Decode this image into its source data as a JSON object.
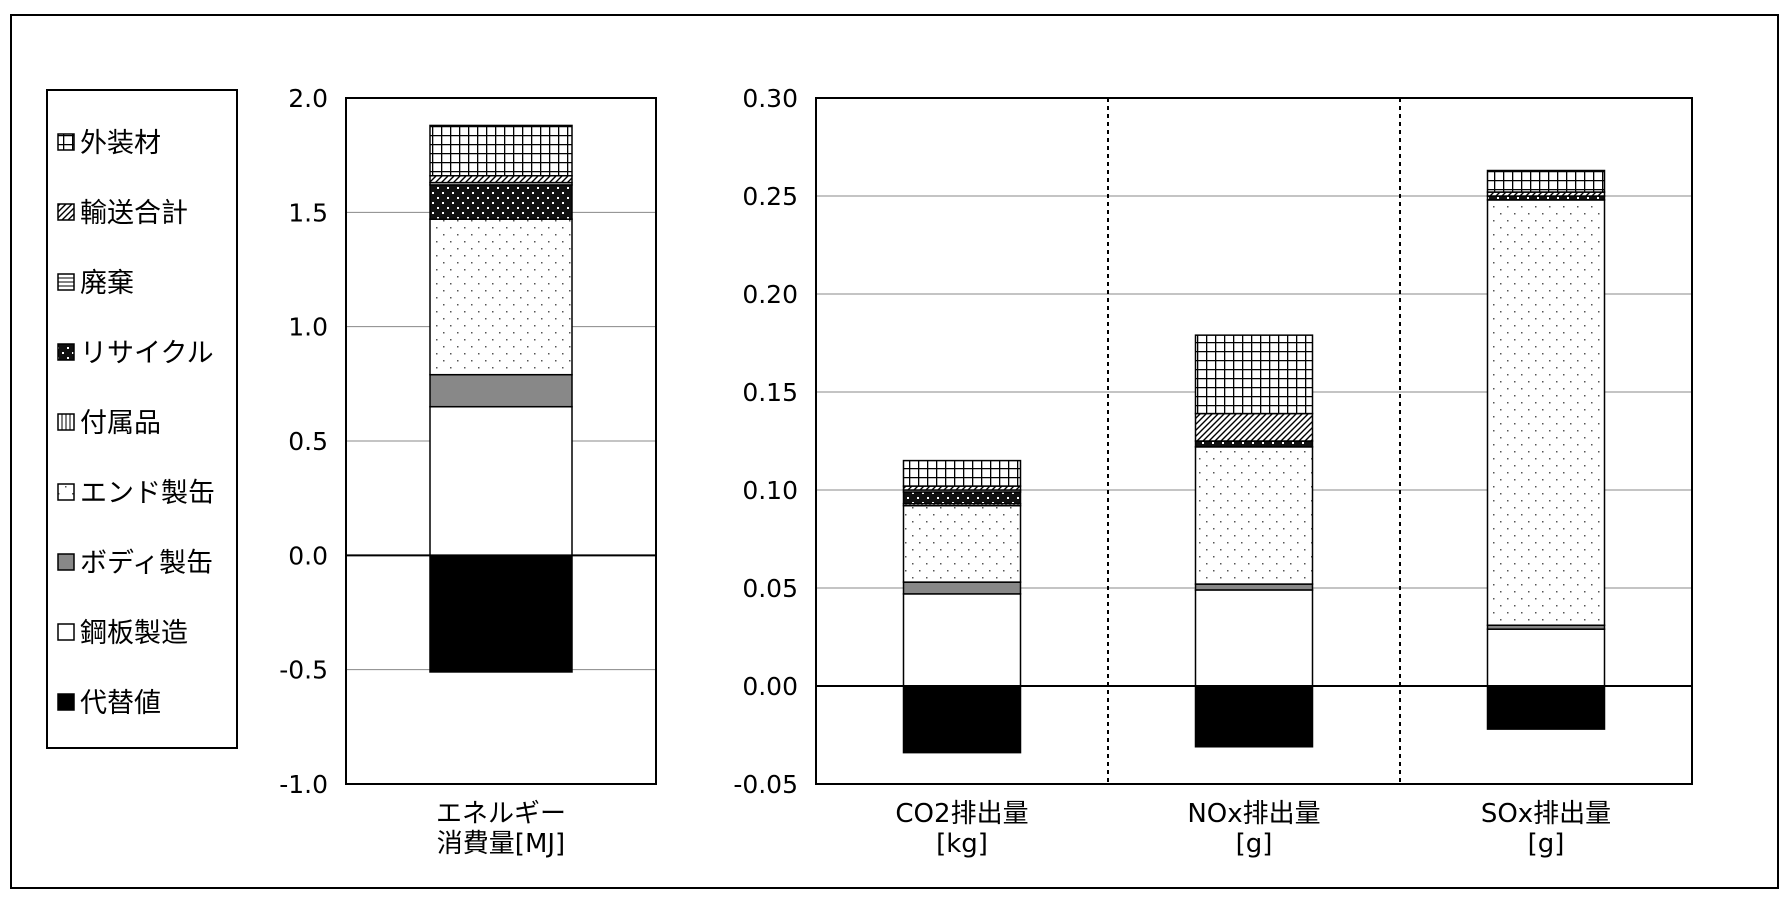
{
  "legend": {
    "items": [
      {
        "label": "外装材",
        "pattern": "grid"
      },
      {
        "label": "輸送合計",
        "pattern": "hatch"
      },
      {
        "label": "廃棄",
        "pattern": "hline"
      },
      {
        "label": "リサイクル",
        "pattern": "darkdots"
      },
      {
        "label": "付属品",
        "pattern": "vline"
      },
      {
        "label": "エンド製缶",
        "pattern": "lightdots"
      },
      {
        "label": "ボディ製缶",
        "pattern": "gray"
      },
      {
        "label": "鋼板製造",
        "pattern": "white"
      },
      {
        "label": "代替値",
        "pattern": "black"
      }
    ]
  },
  "chart_data": [
    {
      "type": "bar",
      "stacked": true,
      "categories": [
        [
          "エネルギー",
          "消費量[MJ]"
        ]
      ],
      "ylim": [
        -1.0,
        2.0
      ],
      "yticks": [
        "2.0",
        "1.5",
        "1.0",
        "0.5",
        "0.0",
        "-0.5",
        "-1.0"
      ],
      "ytick_values": [
        2.0,
        1.5,
        1.0,
        0.5,
        0.0,
        -0.5,
        -1.0
      ],
      "grid": true,
      "series": [
        {
          "name": "代替値",
          "pattern": "black",
          "values": [
            -0.51
          ]
        },
        {
          "name": "鋼板製造",
          "pattern": "white",
          "values": [
            0.65
          ]
        },
        {
          "name": "ボディ製缶",
          "pattern": "gray",
          "values": [
            0.14
          ]
        },
        {
          "name": "エンド製缶",
          "pattern": "lightdots",
          "values": [
            0.68
          ]
        },
        {
          "name": "付属品",
          "pattern": "vline",
          "values": [
            0.0
          ]
        },
        {
          "name": "リサイクル",
          "pattern": "darkdots",
          "values": [
            0.15
          ]
        },
        {
          "name": "廃棄",
          "pattern": "hline",
          "values": [
            0.01
          ]
        },
        {
          "name": "輸送合計",
          "pattern": "hatch",
          "values": [
            0.03
          ]
        },
        {
          "name": "外装材",
          "pattern": "grid",
          "values": [
            0.22
          ]
        }
      ]
    },
    {
      "type": "bar",
      "stacked": true,
      "categories": [
        [
          "CO2排出量",
          "[kg]"
        ],
        [
          "NOx排出量",
          "[g]"
        ],
        [
          "SOx排出量",
          "[g]"
        ]
      ],
      "ylim": [
        -0.05,
        0.3
      ],
      "yticks": [
        "0.30",
        "0.25",
        "0.20",
        "0.15",
        "0.10",
        "0.05",
        "0.00",
        "-0.05"
      ],
      "ytick_values": [
        0.3,
        0.25,
        0.2,
        0.15,
        0.1,
        0.05,
        0.0,
        -0.05
      ],
      "grid": true,
      "category_separators": "dotted",
      "series": [
        {
          "name": "代替値",
          "pattern": "black",
          "values": [
            -0.034,
            -0.031,
            -0.022
          ]
        },
        {
          "name": "鋼板製造",
          "pattern": "white",
          "values": [
            0.047,
            0.049,
            0.029
          ]
        },
        {
          "name": "ボディ製缶",
          "pattern": "gray",
          "values": [
            0.006,
            0.003,
            0.002
          ]
        },
        {
          "name": "エンド製缶",
          "pattern": "lightdots",
          "values": [
            0.039,
            0.07,
            0.217
          ]
        },
        {
          "name": "付属品",
          "pattern": "vline",
          "values": [
            0.001,
            0.0,
            0.0
          ]
        },
        {
          "name": "リサイクル",
          "pattern": "darkdots",
          "values": [
            0.006,
            0.003,
            0.002
          ]
        },
        {
          "name": "廃棄",
          "pattern": "hline",
          "values": [
            0.001,
            0.0,
            0.0
          ]
        },
        {
          "name": "輸送合計",
          "pattern": "hatch",
          "values": [
            0.002,
            0.014,
            0.002
          ]
        },
        {
          "name": "外装材",
          "pattern": "grid",
          "values": [
            0.013,
            0.04,
            0.011
          ]
        }
      ]
    }
  ]
}
